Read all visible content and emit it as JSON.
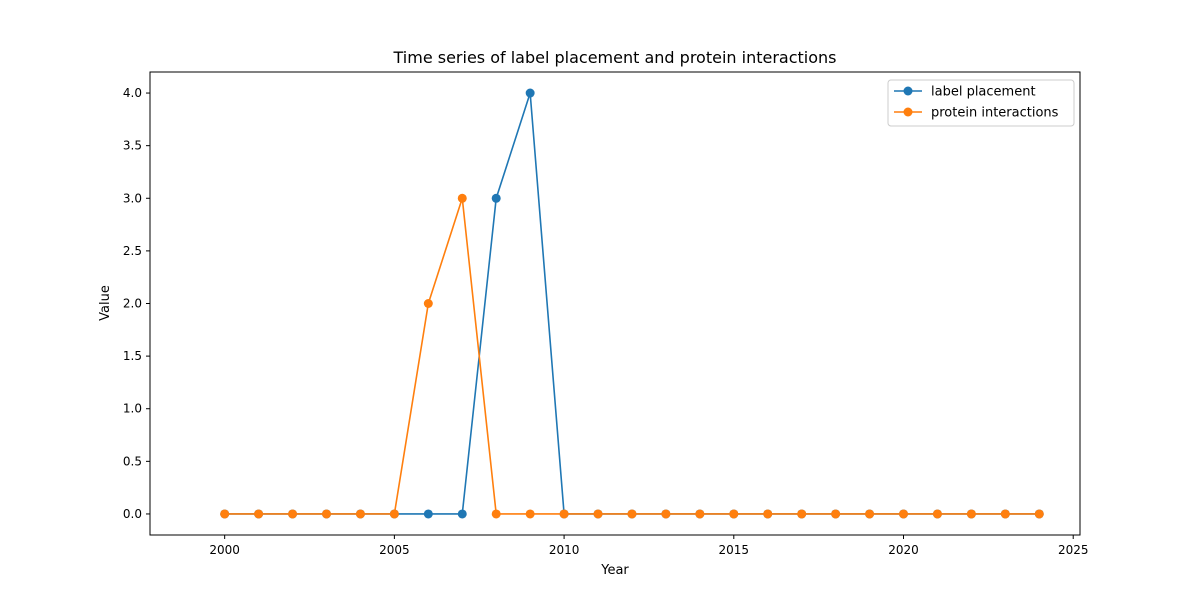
{
  "chart_data": {
    "type": "line",
    "title": "Time series of label placement and protein interactions",
    "xlabel": "Year",
    "ylabel": "Value",
    "xlim": [
      1997.8,
      2025.2
    ],
    "ylim": [
      -0.2,
      4.2
    ],
    "x_ticks": [
      2000,
      2005,
      2010,
      2015,
      2020,
      2025
    ],
    "y_ticks": [
      0.0,
      0.5,
      1.0,
      1.5,
      2.0,
      2.5,
      3.0,
      3.5,
      4.0
    ],
    "x": [
      2000,
      2001,
      2002,
      2003,
      2004,
      2005,
      2006,
      2007,
      2008,
      2009,
      2010,
      2011,
      2012,
      2013,
      2014,
      2015,
      2016,
      2017,
      2018,
      2019,
      2020,
      2021,
      2022,
      2023,
      2024
    ],
    "series": [
      {
        "name": "label placement",
        "color": "#1f77b4",
        "values": [
          0,
          0,
          0,
          0,
          0,
          0,
          0,
          0,
          3,
          4,
          0,
          0,
          0,
          0,
          0,
          0,
          0,
          0,
          0,
          0,
          0,
          0,
          0,
          0,
          0
        ]
      },
      {
        "name": "protein interactions",
        "color": "#ff7f0e",
        "values": [
          0,
          0,
          0,
          0,
          0,
          0,
          2,
          3,
          0,
          0,
          0,
          0,
          0,
          0,
          0,
          0,
          0,
          0,
          0,
          0,
          0,
          0,
          0,
          0,
          0
        ]
      }
    ],
    "grid": false,
    "legend_position": "top-right"
  }
}
